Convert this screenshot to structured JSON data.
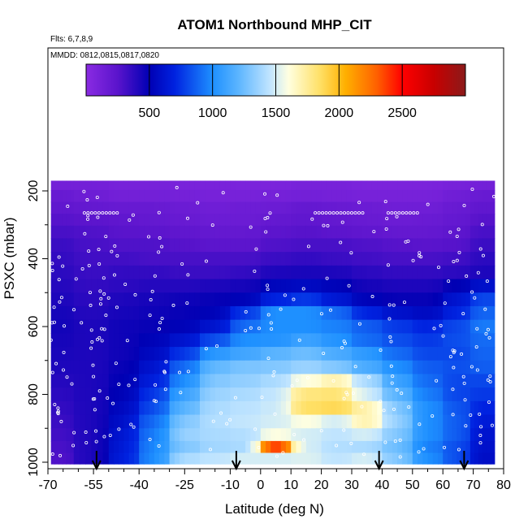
{
  "chart_data": {
    "type": "heatmap",
    "title": "ATOM1 Northbound MHP_CIT",
    "flights_note": "Flts: 6,7,8,9",
    "dates_note": "MMDD: 0812,0815,0817,0820",
    "xlabel": "Latitude (deg N)",
    "ylabel": "PSXC (mbar)",
    "xlim": [
      -70,
      80
    ],
    "ylim": [
      1000,
      150
    ],
    "x_ticks": [
      -70,
      -55,
      -40,
      -25,
      -10,
      0,
      10,
      20,
      30,
      40,
      50,
      60,
      70,
      80
    ],
    "x_minor_step": 5,
    "y_ticks": [
      200,
      400,
      600,
      800,
      1000
    ],
    "y_minor_step": 100,
    "colorbar": {
      "range": [
        0,
        3000
      ],
      "ticks": [
        500,
        1000,
        1500,
        2000,
        2500
      ],
      "colors": [
        "#8a2be2",
        "#5a14cc",
        "#0000b4",
        "#0022e0",
        "#1e90ff",
        "#5ab4ff",
        "#bfe4ff",
        "#ffffe0",
        "#ffe066",
        "#ffb000",
        "#ff6000",
        "#ff0000",
        "#c80000",
        "#8b1a1a"
      ],
      "color_stops": [
        0,
        250,
        500,
        700,
        1000,
        1200,
        1450,
        1600,
        1850,
        2050,
        2300,
        2500,
        2750,
        3000
      ]
    },
    "pressure_levels": [
      180,
      215,
      250,
      285,
      320,
      360,
      400,
      440,
      480,
      520,
      560,
      600,
      640,
      680,
      720,
      760,
      800,
      840,
      880,
      920,
      955,
      990
    ],
    "latitude_cells": [
      -70,
      -60,
      -50,
      -40,
      -30,
      -20,
      -10,
      0,
      10,
      20,
      30,
      40,
      50,
      60,
      70,
      77
    ],
    "latitude_bins": [
      -68,
      -55,
      -45,
      -35,
      -25,
      -15,
      -5,
      5,
      15,
      25,
      35,
      45,
      55,
      65,
      73
    ],
    "values": [
      [
        120,
        120,
        100,
        100,
        90,
        90,
        80,
        80,
        100,
        100,
        80,
        80,
        80,
        100,
        120
      ],
      [
        180,
        150,
        120,
        120,
        110,
        100,
        100,
        110,
        120,
        110,
        100,
        100,
        100,
        140,
        180
      ],
      [
        220,
        200,
        180,
        180,
        160,
        140,
        150,
        160,
        200,
        180,
        160,
        140,
        140,
        180,
        220
      ],
      [
        260,
        240,
        220,
        200,
        180,
        160,
        160,
        200,
        220,
        200,
        180,
        160,
        170,
        200,
        260
      ],
      [
        300,
        280,
        250,
        240,
        220,
        200,
        200,
        240,
        260,
        240,
        220,
        200,
        200,
        230,
        300
      ],
      [
        340,
        300,
        280,
        280,
        260,
        240,
        240,
        280,
        300,
        300,
        280,
        260,
        250,
        260,
        340
      ],
      [
        360,
        320,
        320,
        300,
        300,
        300,
        300,
        340,
        360,
        340,
        320,
        300,
        300,
        320,
        380
      ],
      [
        380,
        340,
        360,
        360,
        340,
        340,
        360,
        420,
        430,
        420,
        380,
        360,
        360,
        380,
        420
      ],
      [
        400,
        360,
        380,
        400,
        400,
        420,
        440,
        540,
        560,
        520,
        440,
        420,
        420,
        500,
        600
      ],
      [
        420,
        380,
        420,
        440,
        460,
        480,
        520,
        700,
        760,
        640,
        520,
        480,
        480,
        620,
        800
      ],
      [
        440,
        400,
        440,
        460,
        480,
        520,
        760,
        1000,
        1000,
        900,
        700,
        600,
        560,
        700,
        880
      ],
      [
        450,
        420,
        460,
        480,
        520,
        620,
        900,
        1000,
        1000,
        960,
        860,
        760,
        700,
        800,
        940
      ],
      [
        440,
        420,
        460,
        520,
        620,
        820,
        1000,
        1020,
        1100,
        1020,
        900,
        820,
        760,
        820,
        900
      ],
      [
        430,
        420,
        460,
        560,
        760,
        1040,
        1120,
        1200,
        1250,
        1150,
        1050,
        900,
        800,
        800,
        880
      ],
      [
        420,
        420,
        480,
        620,
        900,
        1220,
        1280,
        1300,
        1360,
        1300,
        1150,
        1000,
        860,
        820,
        860
      ],
      [
        400,
        420,
        500,
        680,
        1000,
        1300,
        1340,
        1400,
        1600,
        1700,
        1400,
        1100,
        900,
        800,
        800
      ],
      [
        380,
        420,
        520,
        760,
        1100,
        1360,
        1400,
        1460,
        1800,
        1820,
        1500,
        1200,
        950,
        800,
        760
      ],
      [
        360,
        420,
        560,
        820,
        1200,
        1400,
        1440,
        1480,
        1850,
        1880,
        1700,
        1300,
        1000,
        840,
        700
      ],
      [
        340,
        420,
        600,
        900,
        1300,
        1420,
        1460,
        1500,
        1600,
        1500,
        1700,
        1350,
        1000,
        860,
        660
      ],
      [
        320,
        420,
        640,
        950,
        1350,
        1400,
        1420,
        1600,
        1500,
        1450,
        1500,
        1300,
        1000,
        860,
        620
      ],
      [
        300,
        420,
        660,
        980,
        1300,
        1380,
        1400,
        2400,
        1500,
        1420,
        1400,
        1250,
        960,
        820,
        600
      ],
      [
        280,
        420,
        680,
        1000,
        1400,
        1450,
        1500,
        1500,
        1520,
        1450,
        1500,
        1300,
        1000,
        820,
        580
      ]
    ],
    "sample_markers": "open white circles at sampled points",
    "arrow_latitudes": [
      -54,
      -8,
      39,
      67
    ]
  }
}
